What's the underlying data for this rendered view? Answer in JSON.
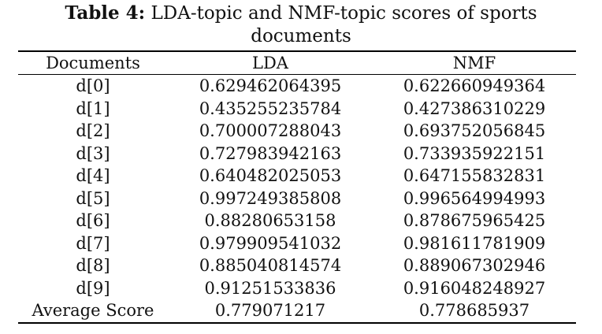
{
  "caption": {
    "label": "Table 4:",
    "text_line1": "LDA-topic and NMF-topic scores of sports",
    "text_line2": "documents"
  },
  "table": {
    "headers": [
      "Documents",
      "LDA",
      "NMF"
    ],
    "rows": [
      [
        "d[0]",
        "0.629462064395",
        "0.622660949364"
      ],
      [
        "d[1]",
        "0.435255235784",
        "0.427386310229"
      ],
      [
        "d[2]",
        "0.700007288043",
        "0.693752056845"
      ],
      [
        "d[3]",
        "0.727983942163",
        "0.733935922151"
      ],
      [
        "d[4]",
        "0.640482025053",
        "0.647155832831"
      ],
      [
        "d[5]",
        "0.997249385808",
        "0.996564994993"
      ],
      [
        "d[6]",
        "0.88280653158",
        "0.878675965425"
      ],
      [
        "d[7]",
        "0.979909541032",
        "0.981611781909"
      ],
      [
        "d[8]",
        "0.885040814574",
        "0.889067302946"
      ],
      [
        "d[9]",
        "0.91251533836",
        "0.916048248927"
      ],
      [
        "Average Score",
        "0.779071217",
        "0.778685937"
      ]
    ]
  }
}
